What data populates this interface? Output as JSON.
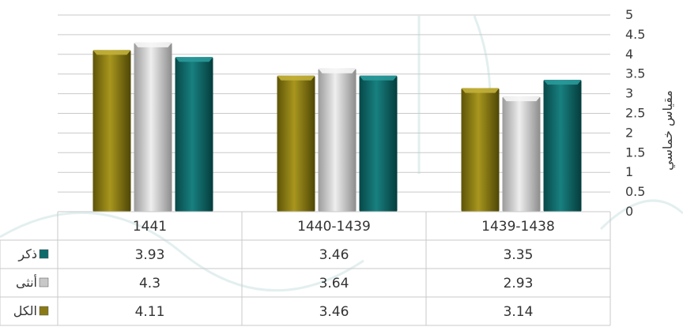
{
  "chart_data": {
    "type": "bar",
    "categories": [
      "1441",
      "1440-1439",
      "1439-1438"
    ],
    "series": [
      {
        "name": "ذكر",
        "values": [
          3.93,
          3.46,
          3.35
        ],
        "color": "#0f6b6b"
      },
      {
        "name": "أنثى",
        "values": [
          4.3,
          3.64,
          2.93
        ],
        "color": "#c8c8c8"
      },
      {
        "name": "الكل",
        "values": [
          4.11,
          3.46,
          3.14
        ],
        "color": "#8a7a16"
      }
    ],
    "bar_order": [
      "الكل",
      "أنثى",
      "ذكر"
    ],
    "ylabel": "مقياس خماسي",
    "yticks": [
      "0",
      "0.5",
      "1",
      "1.5",
      "2",
      "2.5",
      "3",
      "3.5",
      "4",
      "4.5",
      "5"
    ],
    "ylim": [
      0,
      5
    ],
    "y_axis_side": "right",
    "grid": true,
    "data_table": true
  }
}
